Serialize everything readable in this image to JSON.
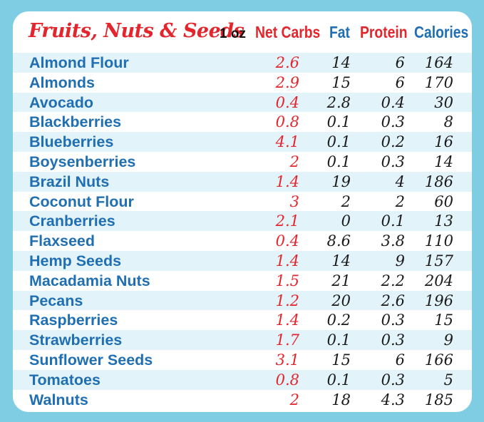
{
  "header": {
    "title": "Fruits, Nuts & Seeds",
    "serving": "1 oz",
    "columns": [
      "Net Carbs",
      "Fat",
      "Protein",
      "Calories"
    ]
  },
  "rows": [
    {
      "name": "Almond Flour",
      "carbs": "2.6",
      "fat": "14",
      "protein": "6",
      "calories": "164"
    },
    {
      "name": "Almonds",
      "carbs": "2.9",
      "fat": "15",
      "protein": "6",
      "calories": "170"
    },
    {
      "name": "Avocado",
      "carbs": "0.4",
      "fat": "2.8",
      "protein": "0.4",
      "calories": "30"
    },
    {
      "name": "Blackberries",
      "carbs": "0.8",
      "fat": "0.1",
      "protein": "0.3",
      "calories": "8"
    },
    {
      "name": "Blueberries",
      "carbs": "4.1",
      "fat": "0.1",
      "protein": "0.2",
      "calories": "16"
    },
    {
      "name": "Boysenberries",
      "carbs": "2",
      "fat": "0.1",
      "protein": "0.3",
      "calories": "14"
    },
    {
      "name": "Brazil Nuts",
      "carbs": "1.4",
      "fat": "19",
      "protein": "4",
      "calories": "186"
    },
    {
      "name": "Coconut Flour",
      "carbs": "3",
      "fat": "2",
      "protein": "2",
      "calories": "60"
    },
    {
      "name": "Cranberries",
      "carbs": "2.1",
      "fat": "0",
      "protein": "0.1",
      "calories": "13"
    },
    {
      "name": "Flaxseed",
      "carbs": "0.4",
      "fat": "8.6",
      "protein": "3.8",
      "calories": "110"
    },
    {
      "name": "Hemp Seeds",
      "carbs": "1.4",
      "fat": "14",
      "protein": "9",
      "calories": "157"
    },
    {
      "name": "Macadamia Nuts",
      "carbs": "1.5",
      "fat": "21",
      "protein": "2.2",
      "calories": "204"
    },
    {
      "name": "Pecans",
      "carbs": "1.2",
      "fat": "20",
      "protein": "2.6",
      "calories": "196"
    },
    {
      "name": "Raspberries",
      "carbs": "1.4",
      "fat": "0.2",
      "protein": "0.3",
      "calories": "15"
    },
    {
      "name": "Strawberries",
      "carbs": "1.7",
      "fat": "0.1",
      "protein": "0.3",
      "calories": "9"
    },
    {
      "name": "Sunflower Seeds",
      "carbs": "3.1",
      "fat": "15",
      "protein": "6",
      "calories": "166"
    },
    {
      "name": "Tomatoes",
      "carbs": "0.8",
      "fat": "0.1",
      "protein": "0.3",
      "calories": "5"
    },
    {
      "name": "Walnuts",
      "carbs": "2",
      "fat": "18",
      "protein": "4.3",
      "calories": "185"
    }
  ],
  "colors": {
    "title_red": "#e3262d",
    "label_blue": "#1f6fb2",
    "frame_blue": "#7ecde3",
    "stripe": "#e3f3fa"
  }
}
